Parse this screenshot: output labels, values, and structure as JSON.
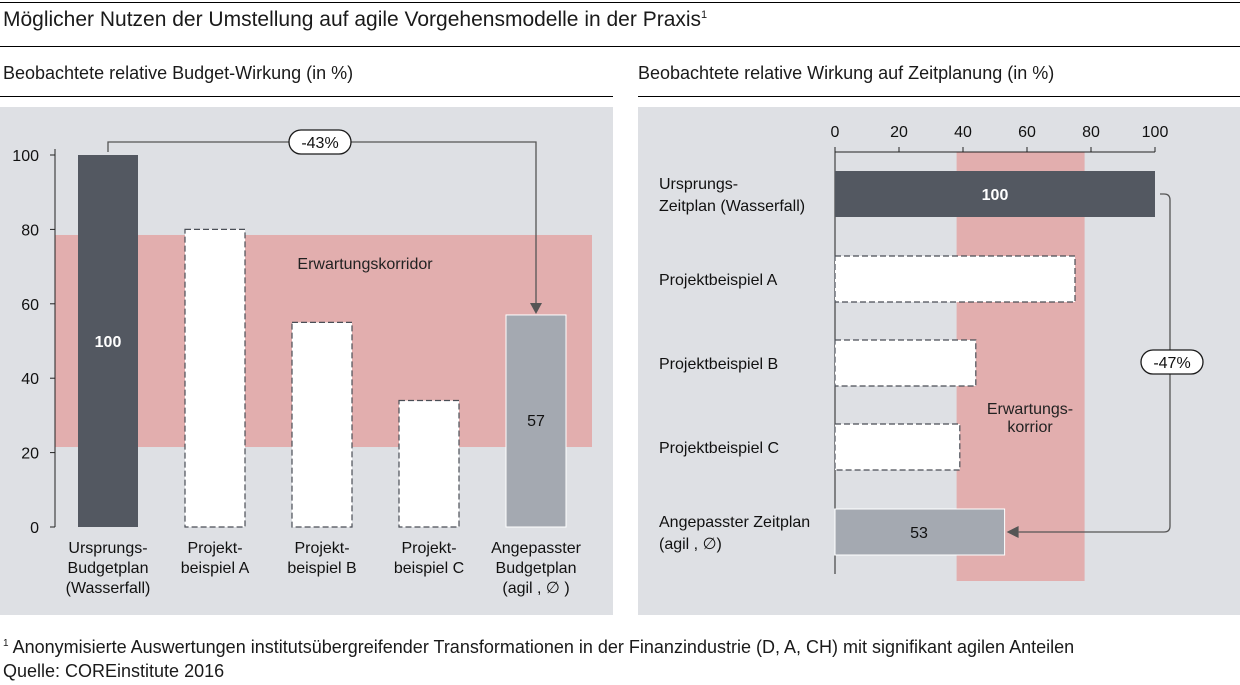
{
  "title": "Möglicher Nutzen der Umstellung auf agile Vorgehensmodelle in der Praxis",
  "title_footnote_mark": "1",
  "footnote": {
    "mark": "1",
    "text": "Anonymisierte Auswertungen institutsübergreifender Transformationen in der Finanzindustrie (D, A, CH) mit signifikant agilen Anteilen",
    "source": "Quelle: COREinstitute 2016"
  },
  "colors": {
    "dark_bar": "#535861",
    "light_bar": "#a4a9b1",
    "corridor": "#e2aeae",
    "panel_bg": "#dee0e4",
    "empty_bar_fill": "#ffffff",
    "empty_bar_border": "#4a4e56"
  },
  "chart_data": [
    {
      "type": "bar",
      "title": "Beobachtete relative Budget-Wirkung (in %)",
      "ylim": [
        0,
        100
      ],
      "yticks": [
        "0",
        "20",
        "40",
        "60",
        "80",
        "100"
      ],
      "grid": false,
      "categories": [
        [
          "Ursprungs-",
          "Budgetplan",
          "(Wasserfall)"
        ],
        [
          "Projekt-",
          "beispiel A"
        ],
        [
          "Projekt-",
          "beispiel B"
        ],
        [
          "Projekt-",
          "beispiel C"
        ],
        [
          "Angepasster",
          "Budgetplan",
          "(agil , ∅ )"
        ]
      ],
      "values": [
        100,
        80,
        55,
        34,
        57
      ],
      "styles": [
        "dark",
        "empty",
        "empty",
        "empty",
        "light"
      ],
      "data_labels": [
        "100",
        "",
        "",
        "",
        "57"
      ],
      "corridor": {
        "label": "Erwartungskorridor",
        "from": 21.5,
        "to": 78.5
      },
      "annotation": {
        "label": "-43%",
        "from_bar": 0,
        "to_bar": 4
      }
    },
    {
      "type": "bar",
      "orientation": "horizontal",
      "title": "Beobachtete relative Wirkung auf Zeitplanung (in %)",
      "xlim": [
        0,
        100
      ],
      "xticks": [
        "0",
        "20",
        "40",
        "60",
        "80",
        "100"
      ],
      "grid": false,
      "categories": [
        [
          "Ursprungs-",
          "Zeitplan (Wasserfall)"
        ],
        [
          "Projektbeispiel A"
        ],
        [
          "Projektbeispiel  B"
        ],
        [
          "Projektbeispiel   C"
        ],
        [
          "Angepasster Zeitplan",
          "(agil , ∅)"
        ]
      ],
      "values": [
        100,
        75,
        44,
        39,
        53
      ],
      "styles": [
        "dark",
        "empty",
        "empty",
        "empty",
        "light"
      ],
      "data_labels": [
        "100",
        "",
        "",
        "",
        "53"
      ],
      "corridor": {
        "label": [
          "Erwartungs-",
          "korrior"
        ],
        "from": 38,
        "to": 78
      },
      "annotation": {
        "label": "-47%",
        "from_bar": 0,
        "to_bar": 4
      }
    }
  ]
}
